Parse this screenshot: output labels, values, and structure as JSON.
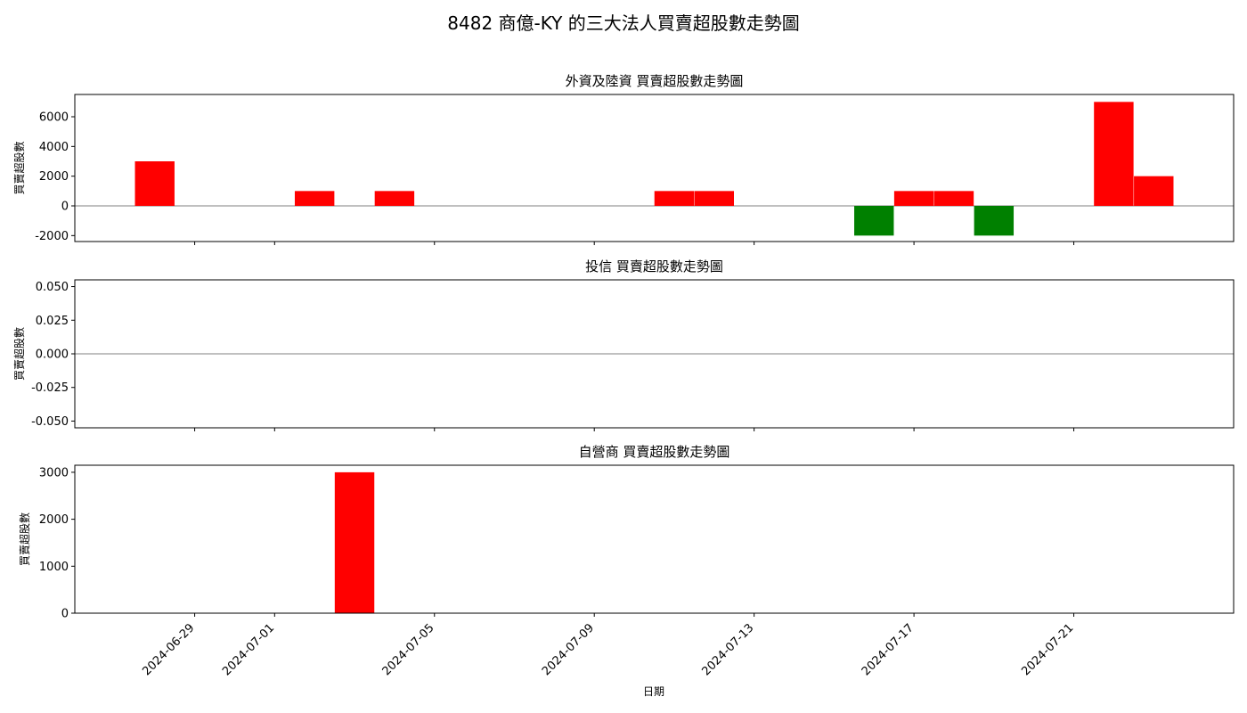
{
  "chart_data": {
    "type": "bar",
    "suptitle": "8482 商億-KY        的三大法人買賣超股數走勢圖",
    "xlabel": "日期",
    "x_tick_labels": [
      "2024-06-29",
      "2024-07-01",
      "2024-07-05",
      "2024-07-09",
      "2024-07-13",
      "2024-07-17",
      "2024-07-21"
    ],
    "x_tick_dates": [
      "2024-06-29",
      "2024-07-01",
      "2024-07-05",
      "2024-07-09",
      "2024-07-13",
      "2024-07-17",
      "2024-07-21"
    ],
    "xlim": [
      "2024-06-26",
      "2024-07-25"
    ],
    "positive_color": "#ff0000",
    "negative_color": "#008000",
    "zero_line_color": "#808080",
    "panels": [
      {
        "title": "外資及陸資 買賣超股數走勢圖",
        "ylabel": "買賣超股數",
        "ylim": [
          -2400,
          7500
        ],
        "yticks": [
          -2000,
          0,
          2000,
          4000,
          6000
        ],
        "ytick_labels": [
          "-2000",
          "0",
          "2000",
          "4000",
          "6000"
        ],
        "zero_line": true,
        "bars": [
          {
            "date": "2024-06-28",
            "value": 3000
          },
          {
            "date": "2024-07-02",
            "value": 1000
          },
          {
            "date": "2024-07-04",
            "value": 1000
          },
          {
            "date": "2024-07-11",
            "value": 1000
          },
          {
            "date": "2024-07-12",
            "value": 1000
          },
          {
            "date": "2024-07-16",
            "value": -2000
          },
          {
            "date": "2024-07-17",
            "value": 1000
          },
          {
            "date": "2024-07-18",
            "value": 1000
          },
          {
            "date": "2024-07-19",
            "value": -2000
          },
          {
            "date": "2024-07-22",
            "value": 7000
          },
          {
            "date": "2024-07-23",
            "value": 2000
          }
        ]
      },
      {
        "title": "投信 買賣超股數走勢圖",
        "ylabel": "買賣超股數",
        "ylim": [
          -0.055,
          0.055
        ],
        "yticks": [
          -0.05,
          -0.025,
          0,
          0.025,
          0.05
        ],
        "ytick_labels": [
          "-0.050",
          "-0.025",
          "0.000",
          "0.025",
          "0.050"
        ],
        "zero_line": true,
        "bars": []
      },
      {
        "title": "自營商 買賣超股數走勢圖",
        "ylabel": "買賣超股數",
        "ylim": [
          0,
          3150
        ],
        "yticks": [
          0,
          1000,
          2000,
          3000
        ],
        "ytick_labels": [
          "0",
          "1000",
          "2000",
          "3000"
        ],
        "zero_line": false,
        "bars": [
          {
            "date": "2024-07-03",
            "value": 3000
          }
        ]
      }
    ]
  }
}
